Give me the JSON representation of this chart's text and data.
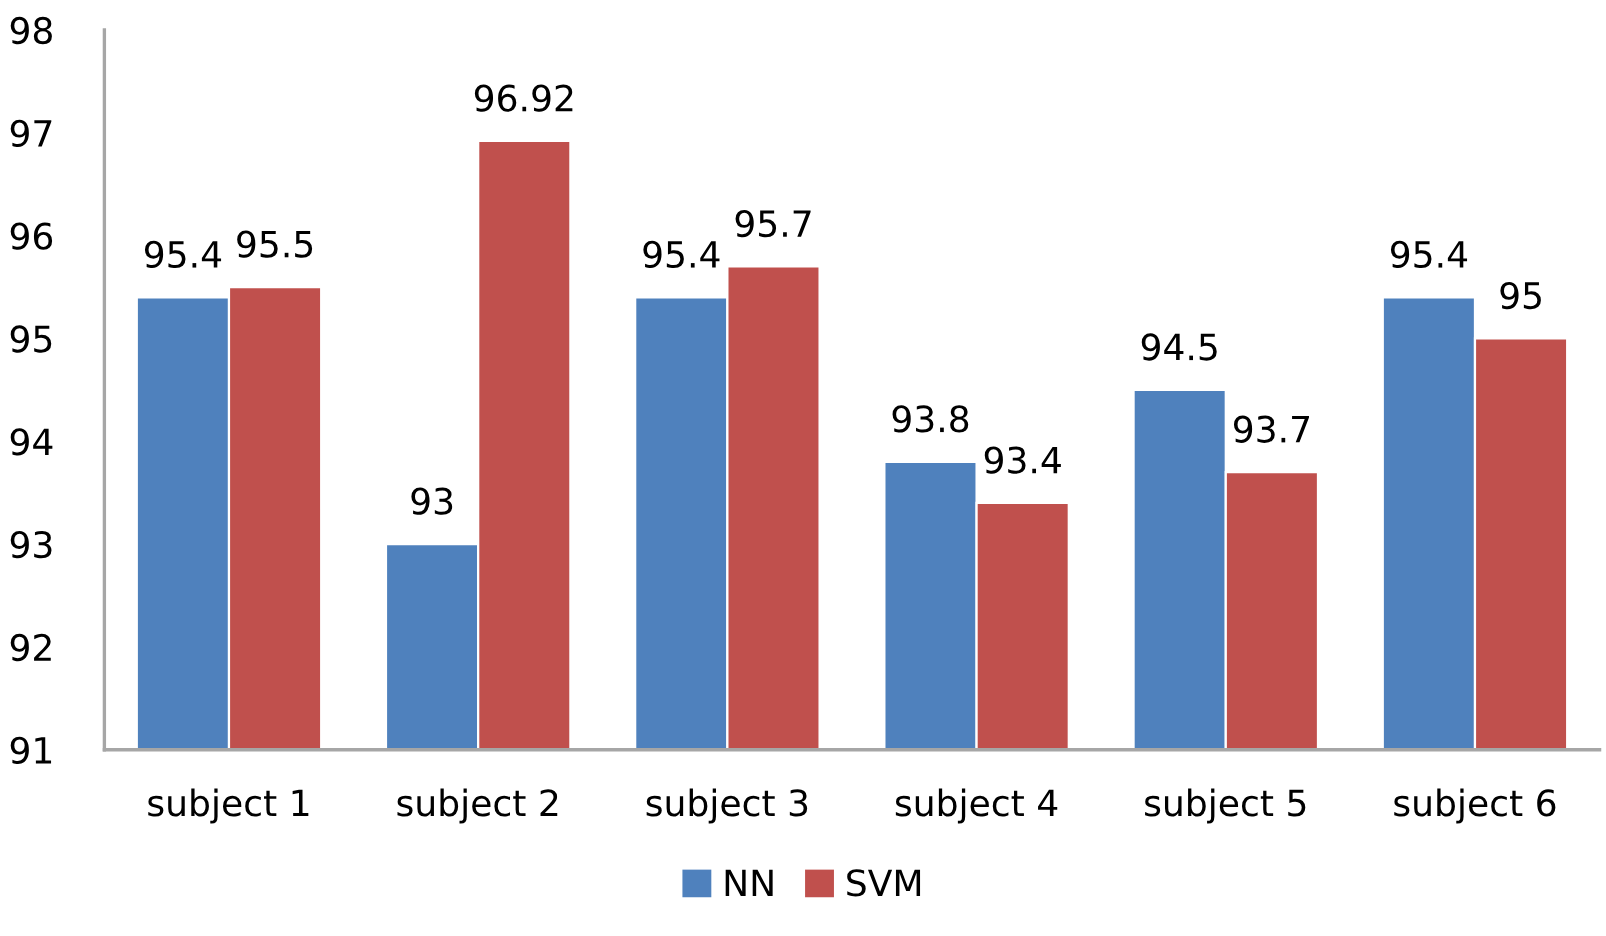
{
  "chart_data": {
    "type": "bar",
    "categories": [
      "subject 1",
      "subject 2",
      "subject 3",
      "subject 4",
      "subject 5",
      "subject 6"
    ],
    "series": [
      {
        "name": "NN",
        "color": "#4f81bd",
        "values": [
          95.4,
          93,
          95.4,
          93.8,
          94.5,
          95.4
        ]
      },
      {
        "name": "SVM",
        "color": "#c0504d",
        "values": [
          95.5,
          96.92,
          95.7,
          93.4,
          93.7,
          95
        ]
      }
    ],
    "ylim": [
      91,
      98
    ],
    "yticks": [
      91,
      92,
      93,
      94,
      95,
      96,
      97,
      98
    ],
    "data_labels": true,
    "legend": "bottom",
    "grid": false
  }
}
